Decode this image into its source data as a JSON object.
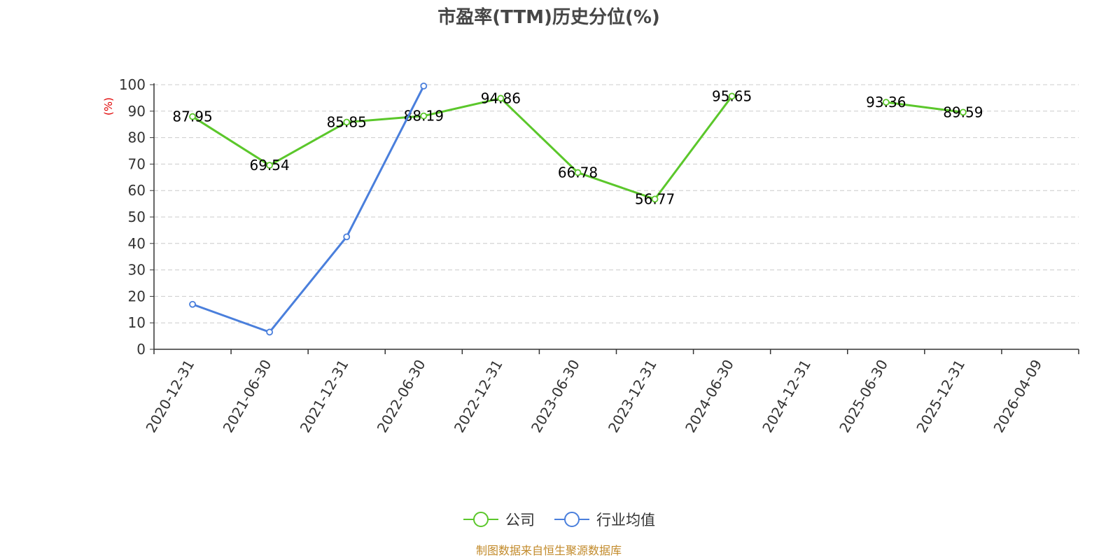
{
  "chart_data": {
    "type": "line",
    "title": "市盈率(TTM)历史分位(%)",
    "ylabel": "(%)",
    "ylim": [
      0,
      100
    ],
    "yticks": [
      0,
      10,
      20,
      30,
      40,
      50,
      60,
      70,
      80,
      90,
      100
    ],
    "categories": [
      "2020-12-31",
      "2021-06-30",
      "2021-12-31",
      "2022-06-30",
      "2022-12-31",
      "2023-06-30",
      "2023-12-31",
      "2024-06-30",
      "2024-12-31",
      "2025-06-30",
      "2025-12-31",
      "2026-04-09"
    ],
    "grid": true,
    "legend_position": "bottom",
    "series": [
      {
        "name": "公司",
        "color": "#5bc72b",
        "values": [
          87.95,
          69.54,
          85.85,
          88.19,
          94.86,
          66.78,
          56.77,
          95.65,
          null,
          93.36,
          89.59,
          null
        ],
        "labels": [
          "87.95",
          "69.54",
          "85.85",
          "88.19",
          "94.86",
          "66.78",
          "56.77",
          "95.65",
          null,
          "93.36",
          "89.59",
          null
        ]
      },
      {
        "name": "行业均值",
        "color": "#4a7fdc",
        "values": [
          17,
          6.5,
          42.5,
          99.5,
          null,
          null,
          null,
          null,
          null,
          null,
          null,
          null
        ],
        "labels": null
      }
    ],
    "source": "制图数据来自恒生聚源数据库"
  }
}
